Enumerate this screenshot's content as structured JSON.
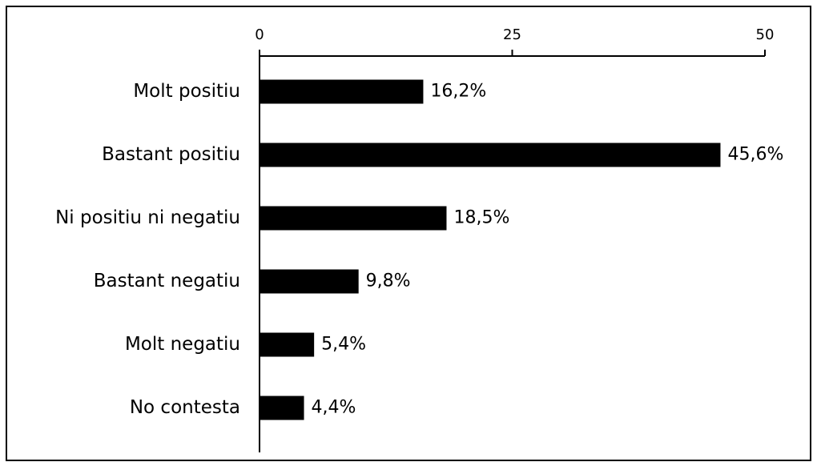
{
  "chart_data": {
    "type": "bar",
    "orientation": "horizontal",
    "categories": [
      "Molt positiu",
      "Bastant positiu",
      "Ni positiu ni negatiu",
      "Bastant negatiu",
      "Molt negatiu",
      "No contesta"
    ],
    "values": [
      16.2,
      45.6,
      18.5,
      9.8,
      5.4,
      4.4
    ],
    "value_labels": [
      "16,2%",
      "45,6%",
      "18,5%",
      "9,8%",
      "5,4%",
      "4,4%"
    ],
    "color": "#000000",
    "xlim": [
      0,
      50
    ],
    "xticks": [
      0,
      25,
      50
    ],
    "grid": false
  }
}
